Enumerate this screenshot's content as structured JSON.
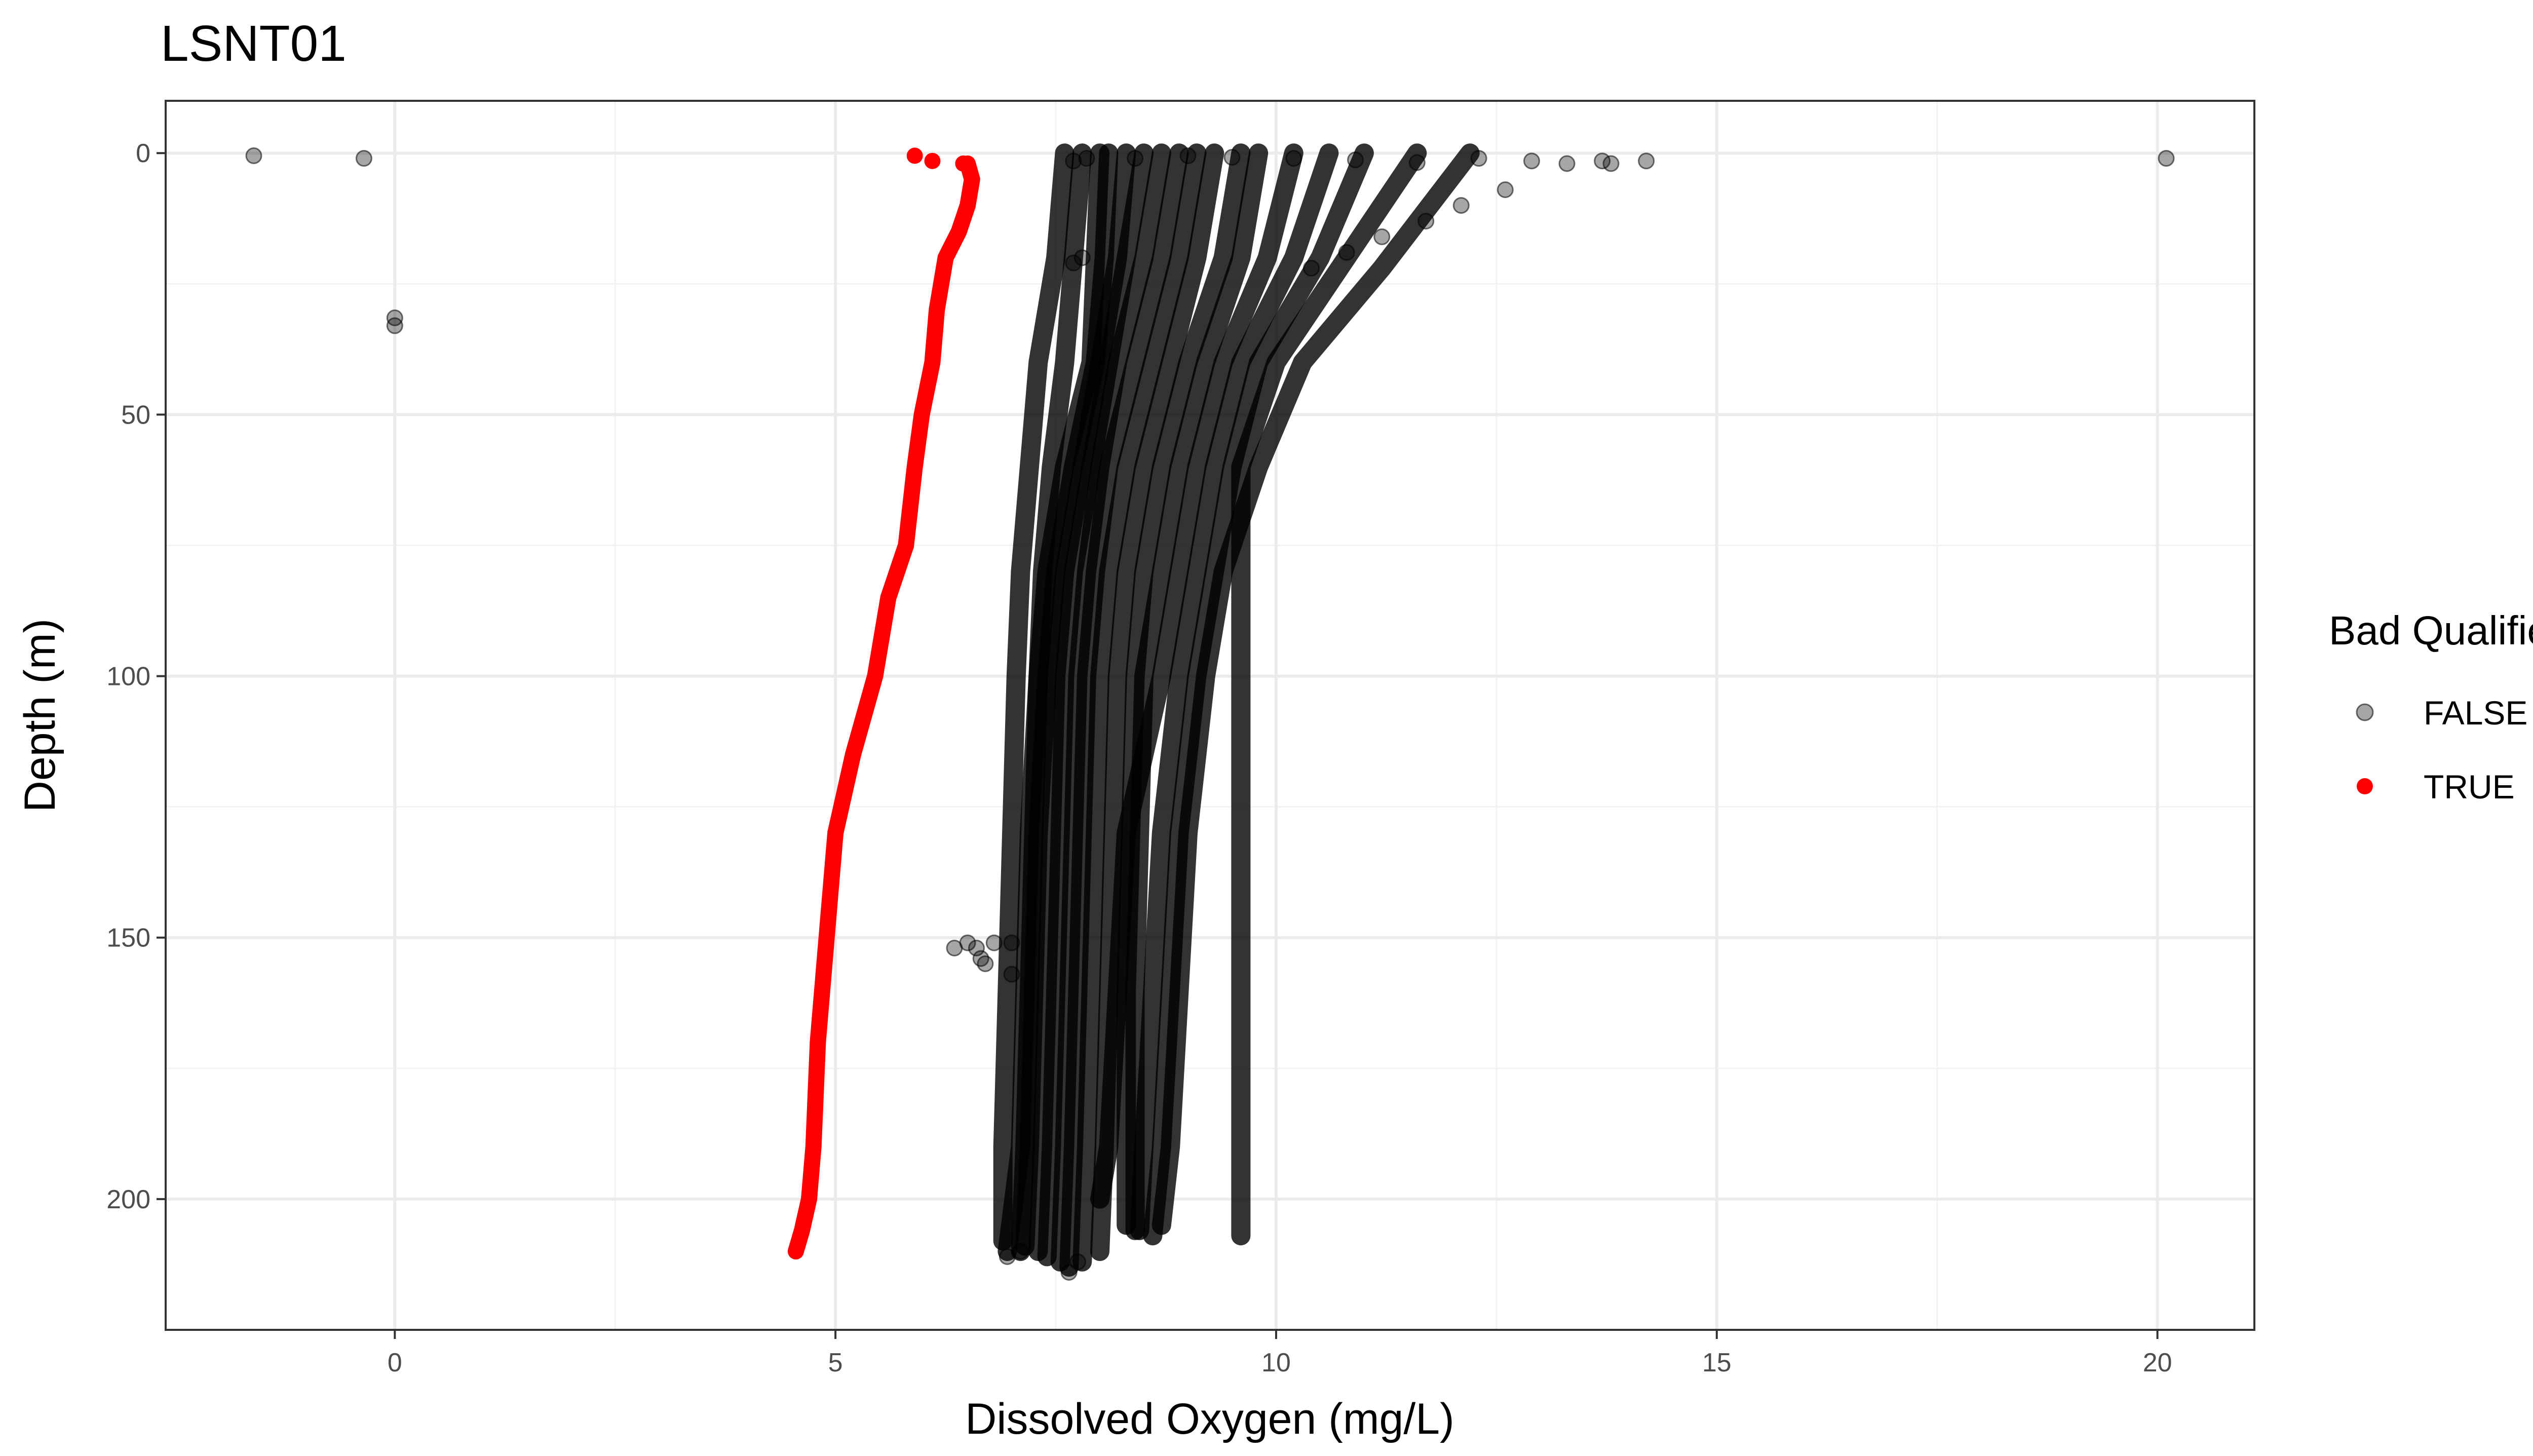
{
  "chart_data": {
    "type": "scatter",
    "title": "LSNT01",
    "xlabel": "Dissolved Oxygen (mg/L)",
    "ylabel": "Depth (m)",
    "xlim": [
      -2.6,
      21.1
    ],
    "ylim": [
      225,
      -10
    ],
    "y_reversed": true,
    "grid": true,
    "x_ticks": [
      0,
      5,
      10,
      15,
      20
    ],
    "y_ticks": [
      0,
      50,
      100,
      150,
      200
    ],
    "legend": {
      "title": "Bad Qualifier",
      "position": "right",
      "entries": [
        {
          "label": "FALSE",
          "color": "#000000",
          "opacity": 0.35
        },
        {
          "label": "TRUE",
          "color": "#ff0000",
          "opacity": 1
        }
      ]
    },
    "series": [
      {
        "name": "FALSE",
        "color": "#000000",
        "profiles": [
          [
            [
              8.0,
              0
            ],
            [
              7.95,
              20
            ],
            [
              7.9,
              40
            ],
            [
              7.6,
              60
            ],
            [
              7.4,
              80
            ],
            [
              7.3,
              100
            ],
            [
              7.2,
              130
            ],
            [
              7.15,
              160
            ],
            [
              7.1,
              190
            ],
            [
              6.95,
              210
            ]
          ],
          [
            [
              8.1,
              0
            ],
            [
              8.05,
              20
            ],
            [
              7.95,
              40
            ],
            [
              7.7,
              60
            ],
            [
              7.5,
              80
            ],
            [
              7.4,
              100
            ],
            [
              7.3,
              130
            ],
            [
              7.25,
              160
            ],
            [
              7.2,
              190
            ],
            [
              7.15,
              209
            ]
          ],
          [
            [
              8.3,
              0
            ],
            [
              8.2,
              20
            ],
            [
              8.0,
              40
            ],
            [
              7.8,
              60
            ],
            [
              7.6,
              80
            ],
            [
              7.5,
              100
            ],
            [
              7.45,
              130
            ],
            [
              7.4,
              160
            ],
            [
              7.35,
              190
            ],
            [
              7.3,
              210
            ]
          ],
          [
            [
              8.5,
              0
            ],
            [
              8.3,
              20
            ],
            [
              8.1,
              40
            ],
            [
              7.9,
              60
            ],
            [
              7.7,
              80
            ],
            [
              7.6,
              100
            ],
            [
              7.55,
              130
            ],
            [
              7.5,
              160
            ],
            [
              7.45,
              190
            ],
            [
              7.4,
              211
            ]
          ],
          [
            [
              8.7,
              0
            ],
            [
              8.5,
              20
            ],
            [
              8.2,
              40
            ],
            [
              8.0,
              60
            ],
            [
              7.85,
              80
            ],
            [
              7.75,
              100
            ],
            [
              7.7,
              130
            ],
            [
              7.65,
              160
            ],
            [
              7.6,
              190
            ],
            [
              7.55,
              212
            ]
          ],
          [
            [
              8.9,
              0
            ],
            [
              8.7,
              20
            ],
            [
              8.4,
              40
            ],
            [
              8.1,
              60
            ],
            [
              7.95,
              80
            ],
            [
              7.85,
              100
            ],
            [
              7.8,
              130
            ],
            [
              7.75,
              160
            ],
            [
              7.7,
              190
            ],
            [
              7.65,
              213
            ]
          ],
          [
            [
              9.1,
              0
            ],
            [
              8.9,
              20
            ],
            [
              8.6,
              40
            ],
            [
              8.3,
              60
            ],
            [
              8.1,
              80
            ],
            [
              8.0,
              100
            ],
            [
              7.95,
              130
            ],
            [
              7.9,
              160
            ],
            [
              7.85,
              190
            ],
            [
              7.8,
              212
            ]
          ],
          [
            [
              9.3,
              0
            ],
            [
              9.1,
              20
            ],
            [
              8.8,
              40
            ],
            [
              8.5,
              60
            ],
            [
              8.3,
              80
            ],
            [
              8.2,
              100
            ],
            [
              8.15,
              130
            ],
            [
              8.1,
              160
            ],
            [
              8.05,
              190
            ],
            [
              8.0,
              210
            ]
          ],
          [
            [
              9.6,
              0
            ],
            [
              9.4,
              20
            ],
            [
              9.0,
              40
            ],
            [
              8.7,
              60
            ],
            [
              8.5,
              80
            ],
            [
              8.4,
              100
            ],
            [
              8.35,
              130
            ],
            [
              8.3,
              160
            ],
            [
              8.3,
              190
            ],
            [
              8.3,
              205
            ]
          ],
          [
            [
              9.8,
              0
            ],
            [
              9.6,
              20
            ],
            [
              9.2,
              40
            ],
            [
              8.9,
              60
            ],
            [
              8.7,
              80
            ],
            [
              8.5,
              100
            ],
            [
              8.45,
              130
            ],
            [
              8.4,
              160
            ],
            [
              8.4,
              190
            ],
            [
              8.4,
              206
            ]
          ],
          [
            [
              10.2,
              0
            ],
            [
              9.9,
              20
            ],
            [
              9.4,
              40
            ],
            [
              9.1,
              60
            ],
            [
              8.9,
              80
            ],
            [
              8.7,
              100
            ],
            [
              8.3,
              130
            ],
            [
              8.2,
              160
            ],
            [
              8.1,
              190
            ],
            [
              8.0,
              200
            ]
          ],
          [
            [
              10.6,
              0
            ],
            [
              10.2,
              20
            ],
            [
              9.6,
              40
            ],
            [
              9.3,
              60
            ],
            [
              9.1,
              80
            ],
            [
              8.9,
              100
            ],
            [
              8.7,
              130
            ],
            [
              8.6,
              160
            ],
            [
              8.5,
              190
            ],
            [
              8.45,
              206
            ]
          ],
          [
            [
              11.0,
              0
            ],
            [
              10.5,
              20
            ],
            [
              9.8,
              40
            ],
            [
              9.5,
              60
            ],
            [
              9.3,
              80
            ],
            [
              9.1,
              100
            ],
            [
              8.9,
              130
            ],
            [
              8.8,
              160
            ],
            [
              8.7,
              190
            ],
            [
              8.6,
              207
            ]
          ],
          [
            [
              11.6,
              0
            ],
            [
              10.8,
              20
            ],
            [
              10.0,
              40
            ],
            [
              9.6,
              60
            ],
            [
              9.6,
              80
            ],
            [
              9.6,
              100
            ],
            [
              9.6,
              130
            ],
            [
              9.6,
              160
            ],
            [
              9.6,
              190
            ],
            [
              9.6,
              207
            ]
          ],
          [
            [
              12.2,
              0
            ],
            [
              11.2,
              22
            ],
            [
              10.3,
              40
            ],
            [
              9.8,
              60
            ],
            [
              9.4,
              80
            ],
            [
              9.2,
              100
            ],
            [
              9.0,
              130
            ],
            [
              8.9,
              160
            ],
            [
              8.8,
              190
            ],
            [
              8.7,
              205
            ]
          ],
          [
            [
              7.6,
              0
            ],
            [
              7.5,
              20
            ],
            [
              7.3,
              40
            ],
            [
              7.2,
              60
            ],
            [
              7.1,
              80
            ],
            [
              7.05,
              100
            ],
            [
              7.0,
              130
            ],
            [
              6.95,
              160
            ],
            [
              6.9,
              190
            ],
            [
              6.9,
              208
            ]
          ],
          [
            [
              7.8,
              0
            ],
            [
              7.7,
              20
            ],
            [
              7.6,
              40
            ],
            [
              7.45,
              60
            ],
            [
              7.35,
              80
            ],
            [
              7.3,
              100
            ],
            [
              7.25,
              130
            ],
            [
              7.2,
              160
            ],
            [
              7.15,
              190
            ],
            [
              7.1,
              210
            ]
          ]
        ],
        "scatter": [
          [
            -1.6,
            0.5
          ],
          [
            -0.35,
            1
          ],
          [
            0.0,
            31.5
          ],
          [
            0.0,
            33
          ],
          [
            7.7,
            1.5
          ],
          [
            7.85,
            1
          ],
          [
            8.4,
            1
          ],
          [
            9.0,
            0.5
          ],
          [
            9.5,
            0.8
          ],
          [
            10.2,
            1
          ],
          [
            10.9,
            1.3
          ],
          [
            11.6,
            1.8
          ],
          [
            12.3,
            1
          ],
          [
            12.9,
            1.5
          ],
          [
            13.3,
            2
          ],
          [
            13.7,
            1.5
          ],
          [
            13.8,
            2
          ],
          [
            14.2,
            1.5
          ],
          [
            20.1,
            1
          ],
          [
            11.2,
            16
          ],
          [
            10.8,
            19
          ],
          [
            10.4,
            22
          ],
          [
            12.6,
            7
          ],
          [
            12.1,
            10
          ],
          [
            11.7,
            13
          ],
          [
            7.7,
            21
          ],
          [
            7.8,
            20
          ],
          [
            6.35,
            152
          ],
          [
            6.5,
            151
          ],
          [
            6.6,
            152
          ],
          [
            6.65,
            154
          ],
          [
            6.7,
            155
          ],
          [
            6.8,
            151
          ],
          [
            7.0,
            151
          ],
          [
            7.0,
            157
          ],
          [
            6.95,
            211
          ],
          [
            7.1,
            210
          ],
          [
            7.65,
            214
          ],
          [
            7.75,
            212
          ]
        ]
      },
      {
        "name": "TRUE",
        "color": "#ff0000",
        "scatter": [
          [
            5.9,
            0.5
          ],
          [
            6.1,
            1.5
          ],
          [
            6.45,
            2
          ]
        ],
        "profile": [
          [
            6.5,
            2
          ],
          [
            6.55,
            5
          ],
          [
            6.5,
            10
          ],
          [
            6.4,
            15
          ],
          [
            6.25,
            20
          ],
          [
            6.15,
            30
          ],
          [
            6.1,
            40
          ],
          [
            5.98,
            50
          ],
          [
            5.9,
            60
          ],
          [
            5.8,
            75
          ],
          [
            5.6,
            85
          ],
          [
            5.45,
            100
          ],
          [
            5.2,
            115
          ],
          [
            5.0,
            130
          ],
          [
            4.9,
            150
          ],
          [
            4.8,
            170
          ],
          [
            4.75,
            190
          ],
          [
            4.7,
            200
          ],
          [
            4.62,
            206
          ],
          [
            4.55,
            210
          ]
        ]
      }
    ]
  }
}
